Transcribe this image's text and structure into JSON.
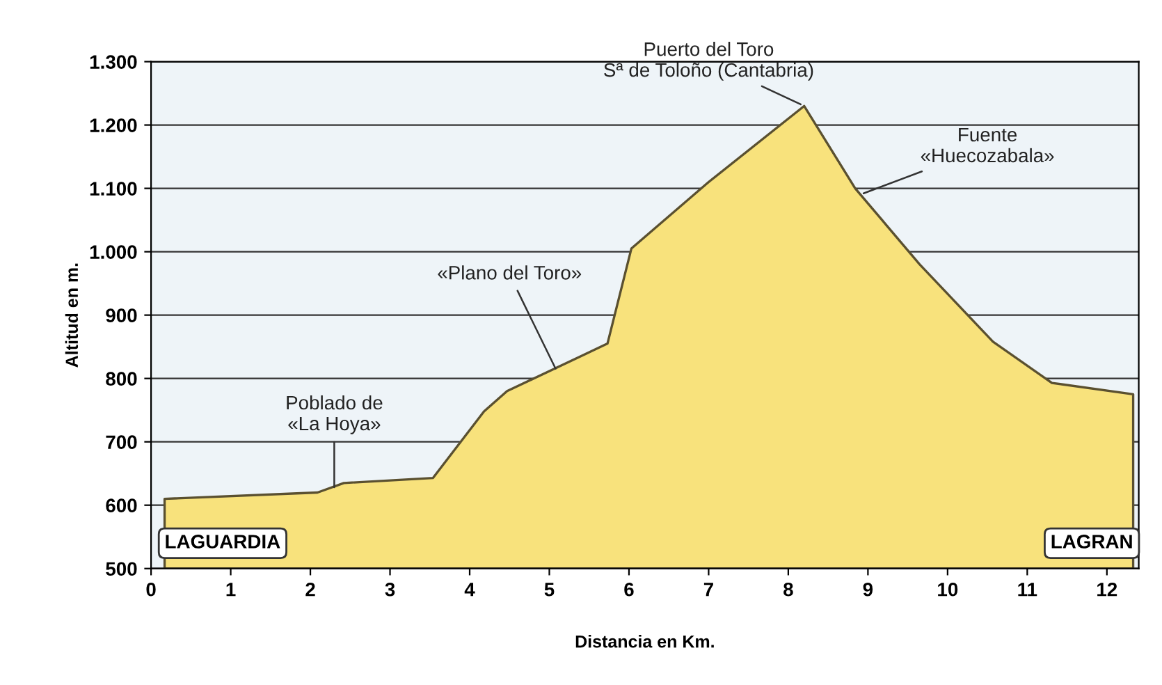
{
  "chart_data": {
    "type": "area",
    "xlabel": "Distancia en Km.",
    "ylabel": "Altitud en m.",
    "x": [
      0.17,
      2.09,
      2.42,
      3.54,
      4.18,
      4.47,
      5.73,
      6.03,
      7.0,
      8.2,
      8.84,
      9.65,
      10.57,
      11.31,
      12.33
    ],
    "series": [
      {
        "color": "#f8e27c",
        "values": [
          610,
          620,
          635,
          643,
          748,
          780,
          855,
          1005,
          1110,
          1230,
          1100,
          980,
          858,
          793,
          775
        ]
      }
    ],
    "xlim": [
      0,
      12.4
    ],
    "ylim": [
      500,
      1300
    ],
    "xticks": [
      0,
      1,
      2,
      3,
      4,
      5,
      6,
      7,
      8,
      9,
      10,
      11,
      12
    ],
    "yticks": [
      500,
      600,
      700,
      800,
      900,
      {
        "value": 1000,
        "label": "1.000"
      },
      {
        "value": 1100,
        "label": "1.100"
      },
      {
        "value": 1200,
        "label": "1.200"
      },
      {
        "value": 1300,
        "label": "1.300"
      }
    ],
    "grid": "y",
    "annotations": [
      {
        "text": "Poblado de\n«La Hoya»",
        "x": 2.3,
        "y": 622
      },
      {
        "text": "«Plano del Toro»",
        "x": 5.1,
        "y": 810
      },
      {
        "text": "Puerto del Toro\nSª de Toloño (Cantabria)",
        "x": 8.2,
        "y": 1230
      },
      {
        "text": "Fuente\n«Huecozabala»",
        "x": 8.9,
        "y": 1090
      },
      {
        "text": "LAGUARDIA",
        "x": 0.17,
        "y": 540
      },
      {
        "text": "LAGRAN",
        "x": 12.33,
        "y": 540
      }
    ]
  }
}
